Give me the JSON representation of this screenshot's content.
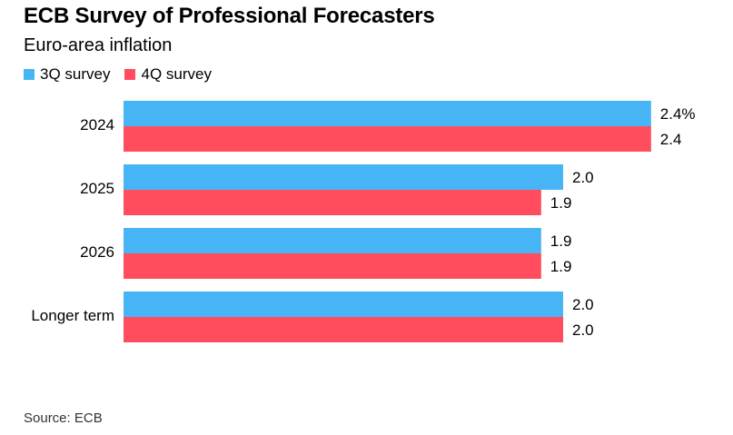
{
  "header": {
    "title": "ECB Survey of Professional Forecasters",
    "subtitle": "Euro-area inflation"
  },
  "footer": {
    "source": "Source: ECB"
  },
  "colors": {
    "series_3q": "#47b5f5",
    "series_4q": "#ff4d5e"
  },
  "chart_data": {
    "type": "bar",
    "orientation": "horizontal",
    "title": "ECB Survey of Professional Forecasters",
    "subtitle": "Euro-area inflation",
    "categories": [
      "2024",
      "2025",
      "2026",
      "Longer term"
    ],
    "series": [
      {
        "name": "3Q survey",
        "values": [
          2.4,
          2.0,
          1.9,
          2.0
        ],
        "labels": [
          "2.4%",
          "2.0",
          "1.9",
          "2.0"
        ]
      },
      {
        "name": "4Q survey",
        "values": [
          2.4,
          1.9,
          1.9,
          2.0
        ],
        "labels": [
          "2.4",
          "1.9",
          "1.9",
          "2.0"
        ]
      }
    ],
    "xlim": [
      0,
      2.4
    ],
    "grid": false,
    "legend_position": "top-left",
    "xlabel": "",
    "ylabel": ""
  }
}
